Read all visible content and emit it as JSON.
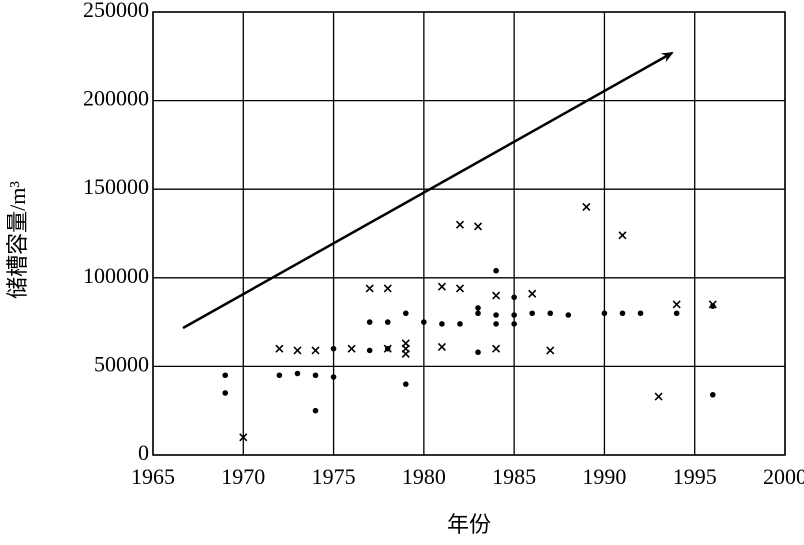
{
  "chart_data": {
    "type": "scatter",
    "xlabel": "年份",
    "ylabel": "储槽容量/m³",
    "xlim": [
      1965,
      2000
    ],
    "xticks": [
      1965,
      1970,
      1975,
      1980,
      1985,
      1990,
      1995,
      2000
    ],
    "ylim": [
      0,
      250000
    ],
    "yticks": [
      0,
      50000,
      100000,
      150000,
      200000,
      250000
    ],
    "grid": true,
    "series": [
      {
        "marker": "dot",
        "color": "#000000",
        "x": [
          1969,
          1969,
          1972,
          1973,
          1974,
          1974,
          1975,
          1975,
          1977,
          1977,
          1978,
          1978,
          1979,
          1979,
          1980,
          1981,
          1982,
          1983,
          1983,
          1983,
          1984,
          1984,
          1984,
          1985,
          1985,
          1985,
          1986,
          1987,
          1988,
          1990,
          1991,
          1992,
          1994,
          1996,
          1996
        ],
        "values": [
          45000,
          35000,
          45000,
          46000,
          45000,
          25000,
          44000,
          60000,
          75000,
          59000,
          75000,
          60000,
          80000,
          40000,
          75000,
          74000,
          74000,
          80000,
          83000,
          58000,
          104000,
          74000,
          79000,
          89000,
          79000,
          74000,
          80000,
          80000,
          79000,
          80000,
          80000,
          80000,
          80000,
          84000,
          34000
        ]
      },
      {
        "marker": "x",
        "color": "#000000",
        "x": [
          1970,
          1972,
          1973,
          1974,
          1976,
          1977,
          1978,
          1978,
          1979,
          1979,
          1979,
          1981,
          1981,
          1982,
          1982,
          1983,
          1984,
          1984,
          1986,
          1987,
          1989,
          1991,
          1993,
          1994,
          1996
        ],
        "values": [
          10000,
          60000,
          59000,
          59000,
          60000,
          94000,
          94000,
          60000,
          63000,
          60000,
          57000,
          95000,
          61000,
          130000,
          94000,
          129000,
          90000,
          60000,
          91000,
          59000,
          140000,
          124000,
          33000,
          85000,
          85000
        ]
      }
    ]
  }
}
